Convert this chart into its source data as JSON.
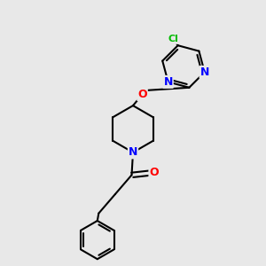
{
  "bg_color": "#e8e8e8",
  "bond_color": "#000000",
  "bond_width": 1.5,
  "atom_colors": {
    "N": "#0000ff",
    "O": "#ff0000",
    "Cl": "#00bb00",
    "C": "#000000"
  },
  "font_size_atom": 9,
  "font_size_cl": 8
}
